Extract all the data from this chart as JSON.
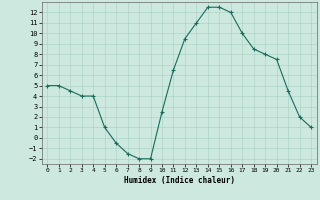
{
  "x": [
    0,
    1,
    2,
    3,
    4,
    5,
    6,
    7,
    8,
    9,
    10,
    11,
    12,
    13,
    14,
    15,
    16,
    17,
    18,
    19,
    20,
    21,
    22,
    23
  ],
  "y": [
    5,
    5,
    4.5,
    4,
    4,
    1,
    -0.5,
    -1.5,
    -2,
    -2,
    2.5,
    6.5,
    9.5,
    11,
    12.5,
    12.5,
    12,
    10,
    8.5,
    8,
    7.5,
    4.5,
    2,
    1
  ],
  "line_color": "#1a6b5a",
  "marker_color": "#1a6b5a",
  "bg_color": "#cce8df",
  "grid_color": "#afd4c8",
  "xlabel": "Humidex (Indice chaleur)",
  "ylim": [
    -2.5,
    13
  ],
  "xlim": [
    -0.5,
    23.5
  ],
  "yticks": [
    -2,
    -1,
    0,
    1,
    2,
    3,
    4,
    5,
    6,
    7,
    8,
    9,
    10,
    11,
    12
  ],
  "xticks": [
    0,
    1,
    2,
    3,
    4,
    5,
    6,
    7,
    8,
    9,
    10,
    11,
    12,
    13,
    14,
    15,
    16,
    17,
    18,
    19,
    20,
    21,
    22,
    23
  ]
}
